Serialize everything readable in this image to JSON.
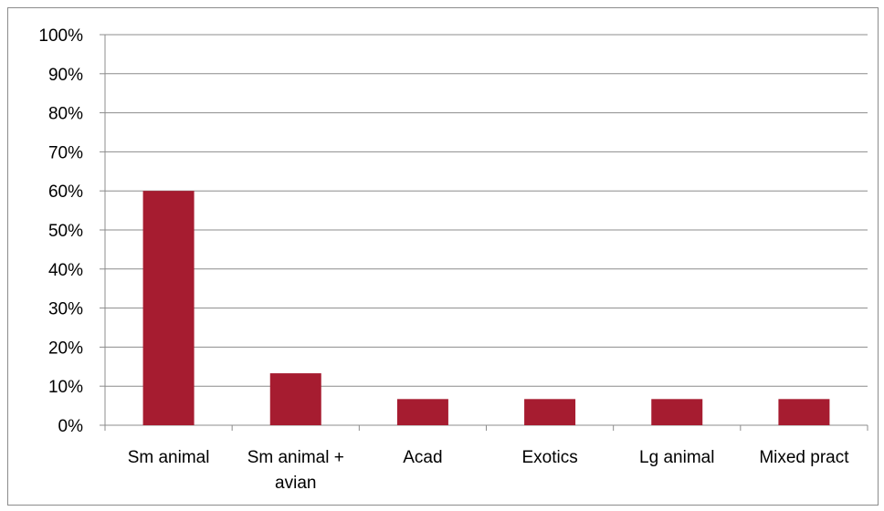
{
  "chart_data": {
    "type": "bar",
    "title": "",
    "xlabel": "",
    "ylabel": "",
    "categories": [
      [
        "Sm animal"
      ],
      [
        "Sm animal +",
        "avian"
      ],
      [
        "Acad"
      ],
      [
        "Exotics"
      ],
      [
        "Lg animal"
      ],
      [
        "Mixed pract"
      ]
    ],
    "values": [
      60,
      13.3,
      6.7,
      6.7,
      6.7,
      6.7
    ],
    "ylim": [
      0,
      100
    ],
    "yticks": [
      "0%",
      "10%",
      "20%",
      "30%",
      "40%",
      "50%",
      "60%",
      "70%",
      "80%",
      "90%",
      "100%"
    ],
    "grid": true,
    "legend": "none",
    "bar_color": "#a61c30",
    "grid_color": "#8c8c8c",
    "axis_color": "#8c8c8c"
  }
}
